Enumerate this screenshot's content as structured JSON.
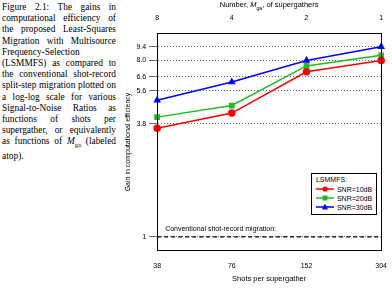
{
  "caption": {
    "label": "Figure 2.1:",
    "text": "The gains in computational efficiency of the proposed Least-Squares Migration with Multisource Frequency-Selection (LSMMFS) as compared to the conventional shot-record split-step migration plotted on a log-log scale for various Signal-to-Noise Ratios as functions of shots per supergather, or equivalently as functions of ",
    "symbol": "M",
    "subscript": "ga",
    "text_end": " (labeled atop)."
  },
  "chart_data": {
    "type": "line",
    "log": true,
    "grid": true,
    "legend": "lower right",
    "legend_title": "LSMMFS:",
    "x_label": "Shots per supergather",
    "y_label": "Gain in computational efficiency",
    "top_axis": {
      "label_before": "Number, ",
      "symbol": "M",
      "subscript": "ga",
      "label_after": ", of supergathers",
      "ticks": [
        {
          "value": 38,
          "label": "8"
        },
        {
          "value": 76,
          "label": "4"
        },
        {
          "value": 152,
          "label": "2"
        },
        {
          "value": 304,
          "label": "1"
        }
      ]
    },
    "x": [
      38,
      76,
      152,
      304
    ],
    "xlim": [
      38,
      304
    ],
    "xticks": [
      38,
      76,
      152,
      304
    ],
    "ylim": [
      0.85,
      11
    ],
    "yticks": [
      1,
      3.8,
      5.6,
      6.6,
      {
        "value": 8,
        "label": "8.0"
      },
      9.4
    ],
    "series": [
      {
        "name": "SNR=10dB",
        "color": "#ff0000",
        "marker": "circle",
        "values": [
          3.6,
          4.3,
          7.0,
          8.0
        ]
      },
      {
        "name": "SNR=20dB",
        "color": "#22bb22",
        "marker": "square",
        "values": [
          4.1,
          4.7,
          7.5,
          8.5
        ]
      },
      {
        "name": "SNR=30dB",
        "color": "#0000ff",
        "marker": "triangle",
        "values": [
          5.0,
          6.2,
          8.0,
          9.4
        ]
      }
    ],
    "reference_line": {
      "name": "Conventional shot-record migration:",
      "value": 1,
      "color": "#000000",
      "line_style": "dashed"
    }
  }
}
